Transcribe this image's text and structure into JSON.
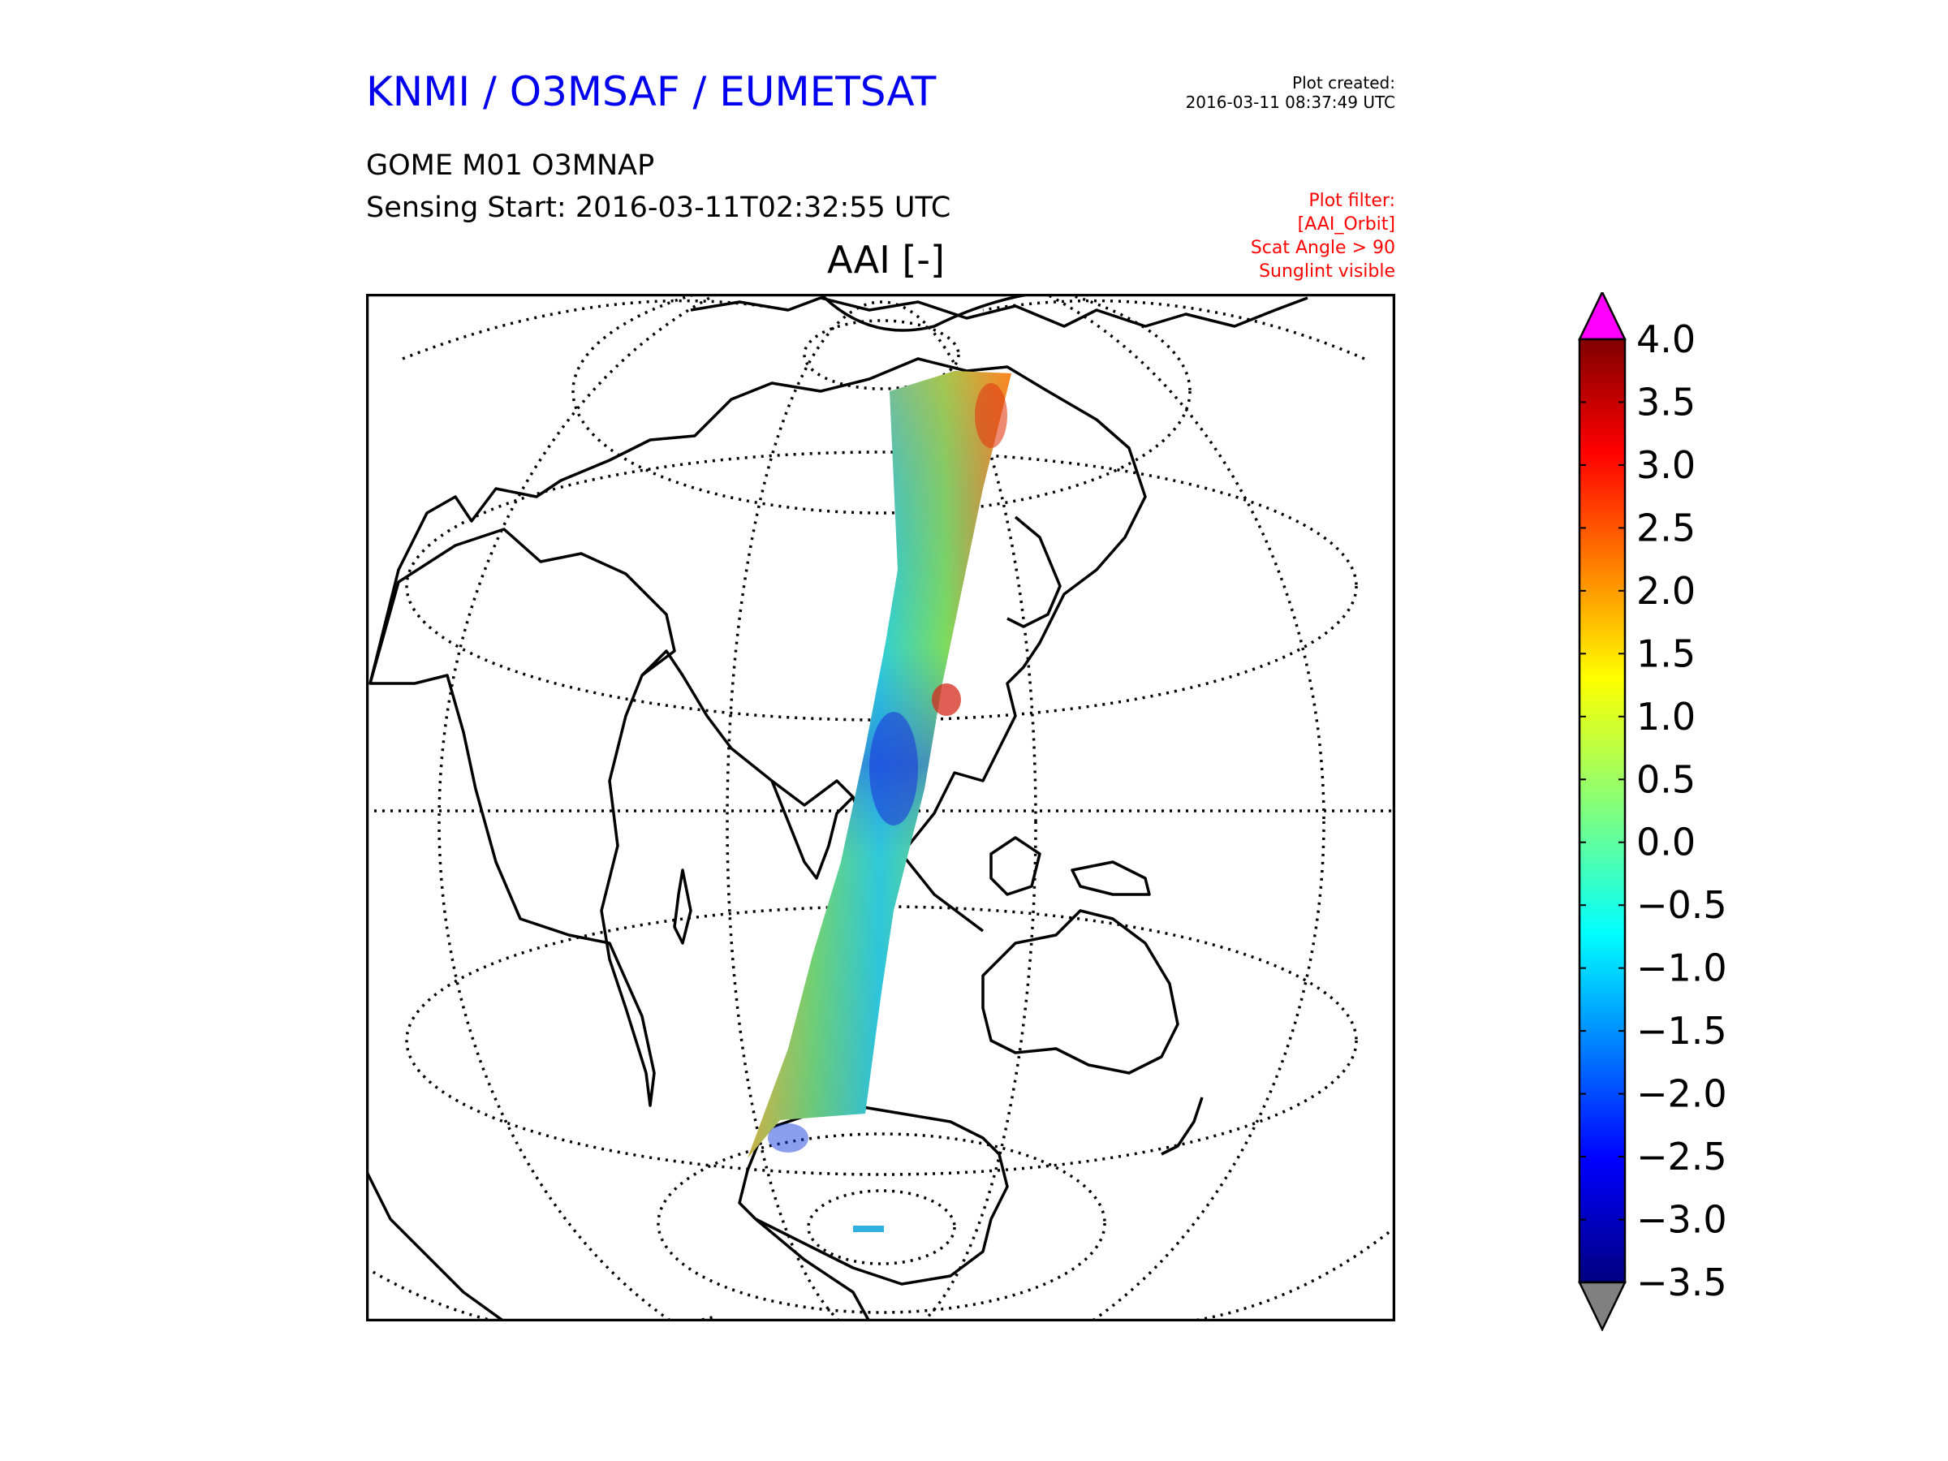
{
  "header": {
    "org_title": "KNMI / O3MSAF / EUMETSAT",
    "created_label": "Plot created:",
    "created_time": "2016-03-11 08:37:49 UTC",
    "product": "GOME M01 O3MNAP",
    "sensing": "Sensing Start: 2016-03-11T02:32:55 UTC",
    "filter_lines": [
      "Plot filter:",
      "[AAI_Orbit]",
      "Scat Angle > 90",
      "Sunglint visible"
    ]
  },
  "map": {
    "variable_title": "AAI [-]",
    "projection": "orthographic",
    "graticule": "dotted",
    "coastlines": true
  },
  "colorbar": {
    "ticks": [
      "4.0",
      "3.5",
      "3.0",
      "2.5",
      "2.0",
      "1.5",
      "1.0",
      "0.5",
      "0.0",
      "−0.5",
      "−1.0",
      "−1.5",
      "−2.0",
      "−2.5",
      "−3.0",
      "−3.5"
    ],
    "min": -3.5,
    "max": 4.0,
    "over_color": "#ff00ff",
    "under_color": "#808080",
    "colormap": "jet"
  },
  "colors": {
    "title_blue": "#0000ee",
    "filter_red": "#ff0000"
  }
}
